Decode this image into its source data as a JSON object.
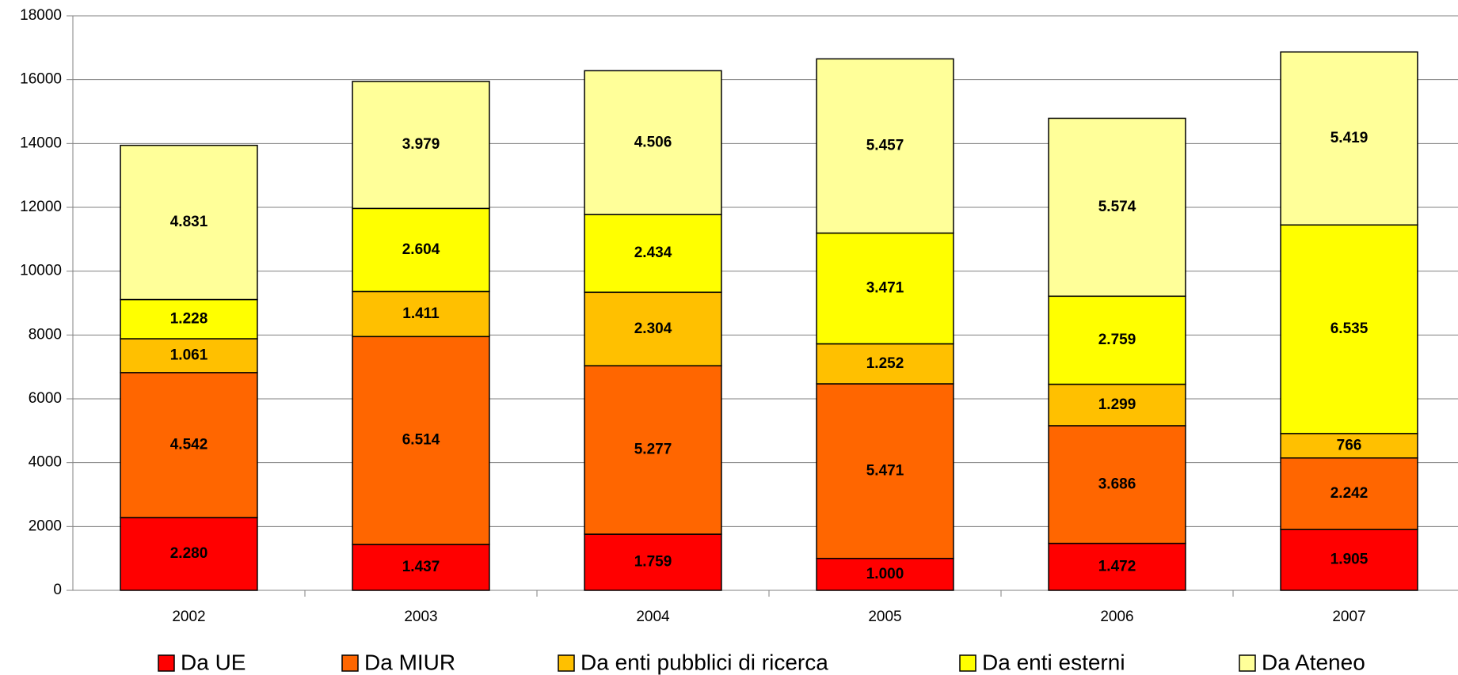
{
  "chart_data": {
    "type": "stacked_bar",
    "categories": [
      "2002",
      "2003",
      "2004",
      "2005",
      "2006",
      "2007"
    ],
    "series": [
      {
        "name": "Da UE",
        "color": "#ff0000",
        "values": [
          2280,
          1437,
          1759,
          1000,
          1472,
          1905
        ],
        "value_labels": [
          "2.280",
          "1.437",
          "1.759",
          "1.000",
          "1.472",
          "1.905"
        ]
      },
      {
        "name": "Da MIUR",
        "color": "#ff6600",
        "values": [
          4542,
          6514,
          5277,
          5471,
          3686,
          2242
        ],
        "value_labels": [
          "4.542",
          "6.514",
          "5.277",
          "5.471",
          "3.686",
          "2.242"
        ]
      },
      {
        "name": "Da enti pubblici di ricerca",
        "color": "#ffc000",
        "values": [
          1061,
          1411,
          2304,
          1252,
          1299,
          766
        ],
        "value_labels": [
          "1.061",
          "1.411",
          "2.304",
          "1.252",
          "1.299",
          "766"
        ]
      },
      {
        "name": "Da enti esterni",
        "color": "#ffff00",
        "values": [
          1228,
          2604,
          2434,
          3471,
          2759,
          6535
        ],
        "value_labels": [
          "1.228",
          "2.604",
          "2.434",
          "3.471",
          "2.759",
          "6.535"
        ]
      },
      {
        "name": "Da Ateneo",
        "color": "#ffff99",
        "values": [
          4831,
          3979,
          4506,
          5457,
          5574,
          5419
        ],
        "value_labels": [
          "4.831",
          "3.979",
          "4.506",
          "5.457",
          "5.574",
          "5.419"
        ]
      }
    ],
    "ylim": [
      0,
      18000
    ],
    "yticks": [
      0,
      2000,
      4000,
      6000,
      8000,
      10000,
      12000,
      14000,
      16000,
      18000
    ],
    "grid": true,
    "legend": "bottom"
  }
}
